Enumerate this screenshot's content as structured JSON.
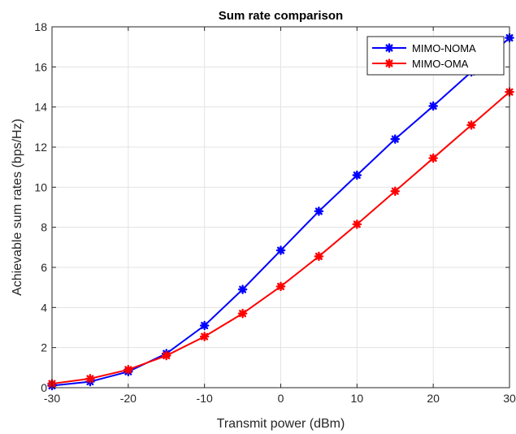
{
  "chart_data": {
    "type": "line",
    "title": "Sum rate comparison",
    "xlabel": "Transmit power (dBm)",
    "ylabel": "Achievable sum rates (bps/Hz)",
    "xlim": [
      -30,
      30
    ],
    "ylim": [
      0,
      18
    ],
    "xticks": [
      -30,
      -20,
      -10,
      0,
      10,
      20,
      30
    ],
    "yticks": [
      0,
      2,
      4,
      6,
      8,
      10,
      12,
      14,
      16,
      18
    ],
    "grid": true,
    "legend_position": "top-right",
    "x": [
      -30,
      -25,
      -20,
      -15,
      -10,
      -5,
      0,
      5,
      10,
      15,
      20,
      25,
      30
    ],
    "series": [
      {
        "name": "MIMO-NOMA",
        "color": "#0000ff",
        "marker": "asterisk",
        "values": [
          0.1,
          0.3,
          0.8,
          1.7,
          3.1,
          4.9,
          6.85,
          8.8,
          10.6,
          12.4,
          14.05,
          15.75,
          17.45
        ]
      },
      {
        "name": "MIMO-OMA",
        "color": "#ff0000",
        "marker": "asterisk",
        "values": [
          0.2,
          0.45,
          0.9,
          1.6,
          2.55,
          3.7,
          5.05,
          6.55,
          8.15,
          9.8,
          11.45,
          13.1,
          14.75
        ]
      }
    ]
  }
}
